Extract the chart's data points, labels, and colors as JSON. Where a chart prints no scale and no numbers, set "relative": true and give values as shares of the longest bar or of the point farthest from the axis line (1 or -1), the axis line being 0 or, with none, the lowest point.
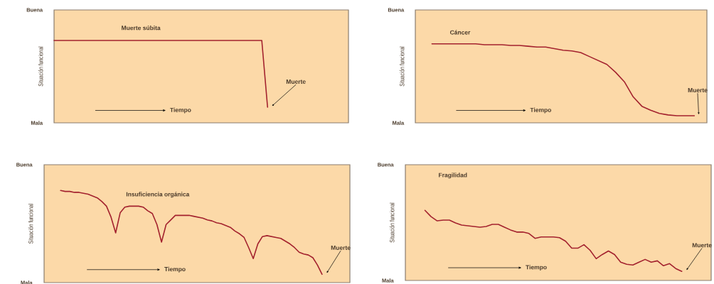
{
  "chart_data": [
    {
      "type": "line",
      "relative": true,
      "xlabel": "Tiempo",
      "ylabel": "Situación funcional",
      "categories": [
        null,
        null,
        null,
        null,
        null,
        null,
        null,
        null,
        null,
        null,
        null,
        null,
        null,
        null,
        null,
        null,
        null,
        null,
        null,
        null,
        null,
        null,
        null,
        null,
        null,
        null,
        null,
        null,
        null,
        null,
        null,
        null,
        null,
        null,
        null,
        null,
        null,
        null
      ],
      "series": [
        {
          "name": "Muerte súbita",
          "color": "#a3222e",
          "values": [
            1,
            1,
            1,
            1,
            1,
            1,
            1,
            1,
            1,
            1,
            1,
            1,
            1,
            1,
            1,
            1,
            1,
            1,
            1,
            1,
            1,
            1,
            1,
            1,
            1,
            1,
            1,
            1,
            1,
            1,
            1,
            1,
            1,
            1,
            1,
            1,
            1,
            0.19
          ]
        }
      ],
      "annotations": [
        "Buena",
        "Mala",
        "Muerte"
      ]
    },
    {
      "type": "line",
      "relative": true,
      "xlabel": "Tiempo",
      "ylabel": "Situación funcional",
      "categories": [
        null,
        null,
        null,
        null,
        null,
        null,
        null,
        null,
        null,
        null,
        null,
        null,
        null,
        null,
        null,
        null,
        null,
        null,
        null,
        null,
        null,
        null,
        null,
        null,
        null,
        null,
        null,
        null,
        null,
        null,
        null
      ],
      "series": [
        {
          "name": "Cáncer",
          "color": "#a3222e",
          "values": [
            1,
            1,
            1,
            1,
            1,
            1,
            0.99,
            0.99,
            0.99,
            0.98,
            0.98,
            0.97,
            0.96,
            0.96,
            0.94,
            0.92,
            0.91,
            0.89,
            0.84,
            0.79,
            0.74,
            0.64,
            0.52,
            0.33,
            0.21,
            0.16,
            0.12,
            0.1,
            0.09,
            0.09,
            0.09
          ]
        }
      ],
      "annotations": [
        "Buena",
        "Mala",
        "Muerte"
      ]
    },
    {
      "type": "line",
      "relative": true,
      "xlabel": "Tiempo",
      "ylabel": "Situación funcional",
      "categories": [
        null,
        null,
        null,
        null,
        null,
        null,
        null,
        null,
        null,
        null,
        null,
        null,
        null,
        null,
        null,
        null,
        null,
        null,
        null,
        null,
        null,
        null,
        null,
        null,
        null,
        null,
        null,
        null,
        null,
        null,
        null,
        null,
        null,
        null,
        null,
        null,
        null,
        null,
        null,
        null,
        null,
        null,
        null,
        null,
        null,
        null,
        null,
        null,
        null,
        null,
        null,
        null,
        null,
        null,
        null,
        null,
        null,
        null
      ],
      "series": [
        {
          "name": "Insuficiencia orgánica",
          "color": "#a3222e",
          "values": [
            1,
            0.99,
            0.99,
            0.98,
            0.98,
            0.97,
            0.96,
            0.94,
            0.92,
            0.88,
            0.83,
            0.71,
            0.54,
            0.76,
            0.82,
            0.83,
            0.83,
            0.83,
            0.82,
            0.78,
            0.75,
            0.63,
            0.44,
            0.63,
            0.68,
            0.73,
            0.73,
            0.73,
            0.73,
            0.72,
            0.71,
            0.7,
            0.68,
            0.67,
            0.65,
            0.64,
            0.62,
            0.6,
            0.56,
            0.53,
            0.49,
            0.38,
            0.26,
            0.42,
            0.5,
            0.51,
            0.5,
            0.49,
            0.48,
            0.45,
            0.42,
            0.38,
            0.33,
            0.31,
            0.3,
            0.27,
            0.19,
            0.09
          ]
        }
      ],
      "annotations": [
        "Buena",
        "Mala",
        "Muerte"
      ]
    },
    {
      "type": "line",
      "relative": true,
      "xlabel": "Tiempo",
      "ylabel": "Situación funcional",
      "categories": [
        null,
        null,
        null,
        null,
        null,
        null,
        null,
        null,
        null,
        null,
        null,
        null,
        null,
        null,
        null,
        null,
        null,
        null,
        null,
        null,
        null,
        null,
        null,
        null,
        null,
        null,
        null,
        null,
        null,
        null,
        null,
        null,
        null,
        null,
        null,
        null,
        null,
        null,
        null,
        null,
        null,
        null,
        null
      ],
      "series": [
        {
          "name": "Fragilidad",
          "color": "#a3222e",
          "values": [
            1,
            0.91,
            0.85,
            0.86,
            0.86,
            0.82,
            0.79,
            0.78,
            0.77,
            0.76,
            0.77,
            0.8,
            0.8,
            0.76,
            0.72,
            0.69,
            0.69,
            0.67,
            0.6,
            0.62,
            0.62,
            0.62,
            0.61,
            0.56,
            0.46,
            0.46,
            0.51,
            0.43,
            0.31,
            0.37,
            0.42,
            0.37,
            0.26,
            0.23,
            0.22,
            0.26,
            0.3,
            0.26,
            0.28,
            0.21,
            0.24,
            0.17,
            0.13
          ]
        }
      ],
      "annotations": [
        "Buena",
        "Mala",
        "Muerte"
      ]
    }
  ]
}
